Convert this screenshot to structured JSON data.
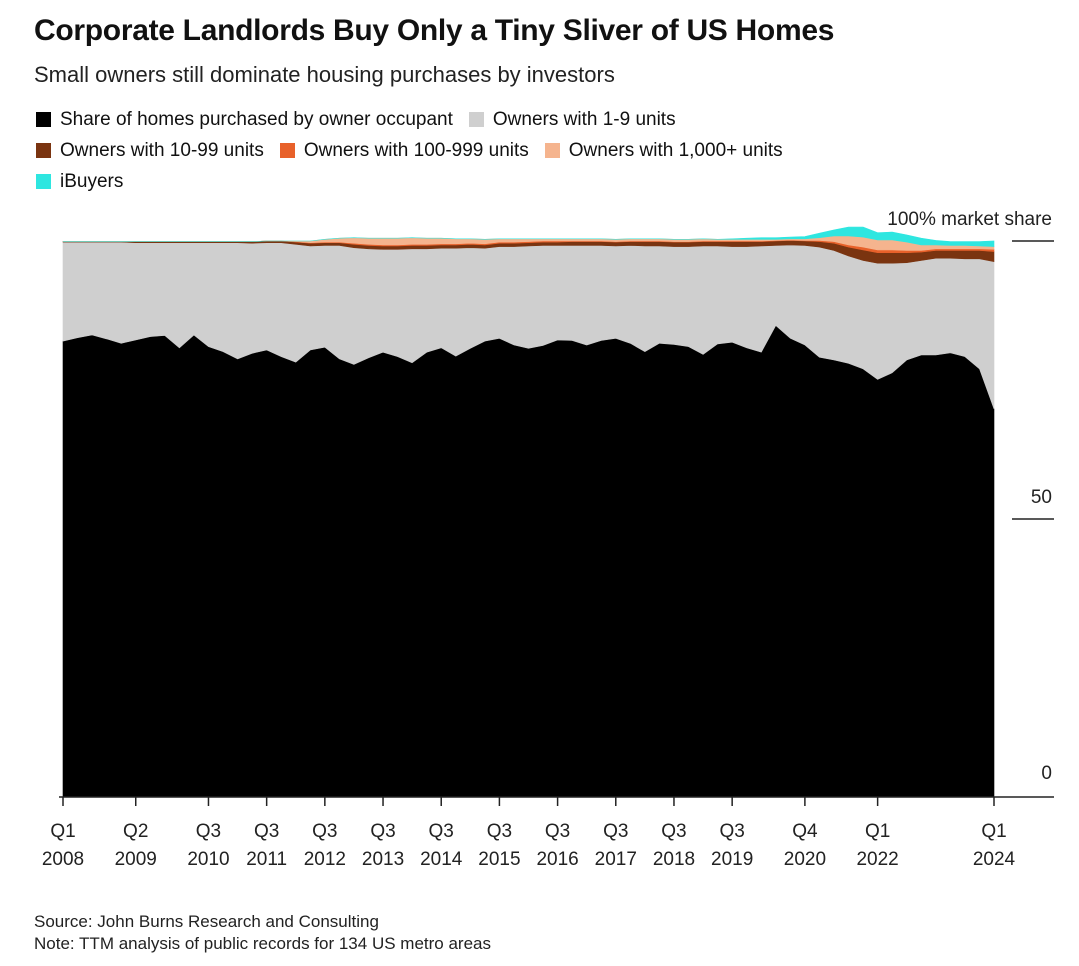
{
  "header": {
    "title": "Corporate Landlords Buy Only a Tiny Sliver of US Homes",
    "subtitle": "Small owners still dominate housing purchases by investors"
  },
  "footer": {
    "source": "Source: John Burns Research and Consulting",
    "note": "Note: TTM analysis of public records for 134 US metro areas"
  },
  "chart_data": {
    "type": "area",
    "stacked": true,
    "title": "Corporate Landlords Buy Only a Tiny Sliver of US Homes",
    "subtitle": "Small owners still dominate housing purchases by investors",
    "ylim": [
      0,
      100
    ],
    "y_ticks": [
      {
        "value": 100,
        "label": "100% market share"
      },
      {
        "value": 50,
        "label": "50"
      },
      {
        "value": 0,
        "label": "0"
      }
    ],
    "x_tick_labels": [
      {
        "x": 0,
        "q": "Q1",
        "y": "2008"
      },
      {
        "x": 5,
        "q": "Q2",
        "y": "2009"
      },
      {
        "x": 10,
        "q": "Q3",
        "y": "2010"
      },
      {
        "x": 14,
        "q": "Q3",
        "y": "2011"
      },
      {
        "x": 18,
        "q": "Q3",
        "y": "2012"
      },
      {
        "x": 22,
        "q": "Q3",
        "y": "2013"
      },
      {
        "x": 26,
        "q": "Q3",
        "y": "2014"
      },
      {
        "x": 30,
        "q": "Q3",
        "y": "2015"
      },
      {
        "x": 34,
        "q": "Q3",
        "y": "2016"
      },
      {
        "x": 38,
        "q": "Q3",
        "y": "2017"
      },
      {
        "x": 42,
        "q": "Q3",
        "y": "2018"
      },
      {
        "x": 46,
        "q": "Q3",
        "y": "2019"
      },
      {
        "x": 51,
        "q": "Q4",
        "y": "2020"
      },
      {
        "x": 56,
        "q": "Q1",
        "y": "2022"
      },
      {
        "x": 64,
        "q": "Q1",
        "y": "2024"
      }
    ],
    "legend": [
      {
        "name": "Share of homes purchased by owner occupant",
        "color": "#000000"
      },
      {
        "name": "Owners with 1-9 units",
        "color": "#cfcfcf"
      },
      {
        "name": "Owners with 10-99 units",
        "color": "#7a3410"
      },
      {
        "name": "Owners with 100-999 units",
        "color": "#e8612a"
      },
      {
        "name": "Owners with 1,000+ units",
        "color": "#f5b48e"
      },
      {
        "name": "iBuyers",
        "color": "#2ee6e0"
      }
    ],
    "x_index": [
      0,
      1,
      2,
      3,
      4,
      5,
      6,
      7,
      8,
      9,
      10,
      11,
      12,
      13,
      14,
      15,
      16,
      17,
      18,
      19,
      20,
      21,
      22,
      23,
      24,
      25,
      26,
      27,
      28,
      29,
      30,
      31,
      32,
      33,
      34,
      35,
      36,
      37,
      38,
      39,
      40,
      41,
      42,
      43,
      44,
      45,
      46,
      47,
      48,
      49,
      50,
      51,
      52,
      53,
      54,
      55,
      56,
      57,
      58,
      59,
      60,
      61,
      62,
      63,
      64
    ],
    "series": [
      {
        "name": "Share of homes purchased by owner occupant",
        "values": [
          82,
          82.6,
          83.1,
          82.4,
          81.6,
          82.2,
          82.8,
          83.0,
          80.8,
          83.1,
          81.0,
          80.1,
          78.8,
          79.8,
          80.4,
          79.2,
          78.2,
          80.4,
          80.9,
          78.8,
          77.8,
          79.0,
          80.0,
          79.2,
          78.1,
          80.0,
          80.8,
          79.3,
          80.7,
          82.0,
          82.5,
          81.3,
          80.7,
          81.2,
          82.2,
          82.1,
          81.3,
          82.1,
          82.5,
          81.6,
          80.1,
          81.6,
          81.4,
          81.0,
          79.6,
          81.5,
          81.8,
          80.8,
          80.0,
          84.8,
          82.5,
          81.3,
          79.1,
          78.6,
          78.0,
          77.0,
          75.1,
          76.3,
          78.6,
          79.5,
          79.5,
          79.9,
          79.2,
          77.0,
          69.8
        ]
      },
      {
        "name": "Owners with 1-9 units",
        "values": [
          17.8,
          17.2,
          16.7,
          17.4,
          18.2,
          17.5,
          16.9,
          16.7,
          18.9,
          16.6,
          18.7,
          19.6,
          20.9,
          19.8,
          19.3,
          20.5,
          21.2,
          18.7,
          18.3,
          20.4,
          21.0,
          19.6,
          18.5,
          19.3,
          20.5,
          18.6,
          17.9,
          19.4,
          18.1,
          16.7,
          16.5,
          17.7,
          18.4,
          18.0,
          17.0,
          17.1,
          17.9,
          17.1,
          16.6,
          17.6,
          19.0,
          17.5,
          17.6,
          18.0,
          19.5,
          17.6,
          17.2,
          18.2,
          19.1,
          14.4,
          16.8,
          17.9,
          19.8,
          19.7,
          19.3,
          19.5,
          20.9,
          19.7,
          17.5,
          17.0,
          17.4,
          17.0,
          17.6,
          19.8,
          26.5
        ]
      },
      {
        "name": "Owners with 10-99 units",
        "values": [
          0.1,
          0.1,
          0.1,
          0.1,
          0.1,
          0.2,
          0.2,
          0.2,
          0.2,
          0.2,
          0.2,
          0.2,
          0.2,
          0.3,
          0.3,
          0.3,
          0.4,
          0.5,
          0.5,
          0.5,
          0.6,
          0.6,
          0.6,
          0.6,
          0.6,
          0.6,
          0.6,
          0.6,
          0.6,
          0.6,
          0.6,
          0.6,
          0.6,
          0.6,
          0.6,
          0.7,
          0.7,
          0.7,
          0.7,
          0.7,
          0.8,
          0.8,
          0.8,
          0.8,
          0.8,
          0.8,
          0.9,
          0.9,
          0.8,
          0.8,
          0.8,
          0.8,
          1.0,
          1.3,
          1.6,
          1.9,
          1.9,
          1.9,
          1.8,
          1.5,
          1.4,
          1.4,
          1.5,
          1.5,
          1.8
        ]
      },
      {
        "name": "Owners with 100-999 units",
        "values": [
          0,
          0,
          0,
          0,
          0,
          0,
          0,
          0,
          0,
          0,
          0,
          0,
          0,
          0,
          0,
          0,
          0.1,
          0.1,
          0.1,
          0.1,
          0.2,
          0.2,
          0.2,
          0.2,
          0.2,
          0.2,
          0.2,
          0.2,
          0.2,
          0.2,
          0.2,
          0.2,
          0.2,
          0.2,
          0.2,
          0.1,
          0.1,
          0.1,
          0.1,
          0.1,
          0.1,
          0.1,
          0.1,
          0.1,
          0.1,
          0.1,
          0.1,
          0.1,
          0.1,
          0.1,
          0.1,
          0.1,
          0.2,
          0.3,
          0.4,
          0.5,
          0.5,
          0.5,
          0.4,
          0.3,
          0.3,
          0.3,
          0.3,
          0.3,
          0.4
        ]
      },
      {
        "name": "Owners with 1,000+ units",
        "values": [
          0,
          0,
          0,
          0,
          0,
          0,
          0,
          0,
          0,
          0,
          0,
          0,
          0,
          0,
          0,
          0,
          0.1,
          0.3,
          0.5,
          0.7,
          1.0,
          1.1,
          1.2,
          1.2,
          1.2,
          1.1,
          1.0,
          0.9,
          0.8,
          0.8,
          0.6,
          0.6,
          0.5,
          0.4,
          0.4,
          0.4,
          0.4,
          0.4,
          0.4,
          0.4,
          0.4,
          0.4,
          0.4,
          0.4,
          0.4,
          0.3,
          0.3,
          0.3,
          0.3,
          0.2,
          0.2,
          0.3,
          0.5,
          1.0,
          1.6,
          1.8,
          1.8,
          1.8,
          1.5,
          1.0,
          0.7,
          0.6,
          0.6,
          0.5,
          0.5
        ]
      },
      {
        "name": "iBuyers",
        "values": [
          0,
          0,
          0,
          0,
          0,
          0,
          0,
          0,
          0,
          0,
          0,
          0,
          0,
          0,
          0,
          0,
          0,
          0,
          0,
          0,
          0,
          0,
          0,
          0,
          0,
          0,
          0,
          0,
          0,
          0,
          0,
          0,
          0,
          0,
          0,
          0,
          0,
          0,
          0,
          0,
          0,
          0,
          0,
          0,
          0,
          0,
          0.1,
          0.2,
          0.3,
          0.3,
          0.3,
          0.4,
          0.8,
          1.1,
          1.6,
          1.8,
          1.3,
          1.4,
          1.3,
          1.2,
          0.8,
          0.7,
          0.7,
          0.8,
          1.0
        ]
      }
    ]
  }
}
